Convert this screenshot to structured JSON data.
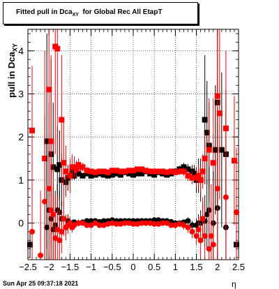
{
  "title": {
    "prefix": "Fitted pull in Dca",
    "sub": "XY",
    "suffix": "  for Global Rec All EtapT"
  },
  "ylabel": {
    "main": "pull in Dca",
    "sub": "XY"
  },
  "xlabel": "η",
  "timestamp": "Sun Apr 25 09:37:18 2021",
  "chart_data": {
    "type": "scatter",
    "title": "Fitted pull in Dca_XY for Global Rec All EtapT",
    "xlabel": "η",
    "ylabel": "pull in Dca_XY",
    "xlim": [
      -2.5,
      2.5
    ],
    "ylim": [
      -0.85,
      4.5
    ],
    "xticks": [
      -2.5,
      -2,
      -1.5,
      -1,
      -0.5,
      0,
      0.5,
      1,
      1.5,
      2,
      2.5
    ],
    "xtick_labels": [
      "−2.5",
      "−2",
      "−1.5",
      "−1",
      "−0.5",
      "0",
      "0.5",
      "1",
      "1.5",
      "2",
      "2.5"
    ],
    "yticks": [
      0,
      1,
      2,
      3,
      4
    ],
    "grid": true,
    "series": [
      {
        "role": "sigma",
        "color": "#000000",
        "marker": "square",
        "x": [
          -2.45,
          -2.05,
          -1.95,
          -1.9,
          -1.8,
          -1.75,
          -1.7,
          -1.6,
          -1.55,
          -1.5,
          -1.45,
          -1.4,
          -1.3,
          -1.2,
          -1.1,
          -1.0,
          -0.9,
          -0.8,
          -0.7,
          -0.6,
          -0.5,
          -0.4,
          -0.3,
          -0.2,
          -0.1,
          0.0,
          0.1,
          0.2,
          0.3,
          0.4,
          0.5,
          0.6,
          0.7,
          0.8,
          0.9,
          1.0,
          1.1,
          1.2,
          1.3,
          1.4,
          1.45,
          1.5,
          1.55,
          1.6,
          1.7,
          1.75,
          1.8,
          1.95,
          2.0,
          2.1,
          2.2,
          2.45
        ],
        "y": [
          -0.5,
          1.9,
          1.6,
          1.3,
          1.25,
          1.35,
          1.0,
          0.95,
          1.05,
          1.1,
          1.2,
          1.1,
          1.15,
          1.1,
          1.15,
          1.1,
          1.12,
          1.15,
          1.12,
          1.1,
          1.12,
          1.15,
          1.12,
          1.18,
          1.15,
          1.12,
          1.15,
          1.15,
          1.2,
          1.15,
          1.12,
          1.18,
          1.15,
          1.12,
          1.15,
          1.2,
          1.25,
          1.3,
          1.25,
          1.2,
          1.15,
          1.0,
          1.1,
          1.0,
          2.4,
          2.1,
          1.8,
          1.7,
          2.8,
          1.7,
          1.6,
          -0.5
        ],
        "err": [
          0.3,
          2.5,
          2.2,
          1.5,
          1.0,
          0.8,
          0.6,
          0.3,
          0.3,
          0.2,
          0.15,
          0.1,
          0.08,
          0.06,
          0.05,
          0.05,
          0.05,
          0.05,
          0.05,
          0.05,
          0.05,
          0.05,
          0.05,
          0.05,
          0.05,
          0.05,
          0.05,
          0.05,
          0.05,
          0.05,
          0.05,
          0.05,
          0.05,
          0.05,
          0.05,
          0.06,
          0.08,
          0.1,
          0.12,
          0.15,
          0.2,
          0.3,
          0.4,
          0.5,
          1.5,
          1.2,
          1.0,
          1.5,
          2.5,
          1.8,
          1.5,
          0.3
        ]
      },
      {
        "role": "sigma",
        "color": "#ff0000",
        "marker": "square",
        "x": [
          -2.4,
          -2.1,
          -2.0,
          -1.95,
          -1.85,
          -1.8,
          -1.7,
          -1.65,
          -1.6,
          -1.5,
          -1.45,
          -1.4,
          -1.35,
          -1.3,
          -1.25,
          -1.2,
          -1.1,
          -1.0,
          -0.9,
          -0.8,
          -0.7,
          -0.6,
          -0.5,
          -0.4,
          -0.3,
          -0.2,
          -0.1,
          0.0,
          0.1,
          0.2,
          0.3,
          0.4,
          0.5,
          0.6,
          0.7,
          0.8,
          0.9,
          1.0,
          1.1,
          1.2,
          1.3,
          1.4,
          1.5,
          1.55,
          1.6,
          1.65,
          1.7,
          1.8,
          1.9,
          2.0,
          2.05,
          2.2,
          2.4
        ],
        "y": [
          2.15,
          1.5,
          3.1,
          1.9,
          4.1,
          4.05,
          2.4,
          1.4,
          1.2,
          1.1,
          1.3,
          1.3,
          1.25,
          1.35,
          1.3,
          1.3,
          1.22,
          1.2,
          1.18,
          1.2,
          1.2,
          1.18,
          1.22,
          1.22,
          1.2,
          1.2,
          1.22,
          1.22,
          1.25,
          1.25,
          1.22,
          1.2,
          1.2,
          1.2,
          1.2,
          1.18,
          1.2,
          1.18,
          1.2,
          1.2,
          1.1,
          1.05,
          1.05,
          1.1,
          1.0,
          1.2,
          1.5,
          1.7,
          1.4,
          2.95,
          2.55,
          2.2,
          1.45
        ],
        "err": [
          1.5,
          2.5,
          2.5,
          2.0,
          2.5,
          2.5,
          1.5,
          1.0,
          0.6,
          0.4,
          0.3,
          0.25,
          0.2,
          0.15,
          0.12,
          0.1,
          0.08,
          0.06,
          0.06,
          0.06,
          0.06,
          0.06,
          0.06,
          0.06,
          0.06,
          0.06,
          0.06,
          0.06,
          0.06,
          0.06,
          0.06,
          0.06,
          0.06,
          0.06,
          0.06,
          0.06,
          0.06,
          0.07,
          0.08,
          0.1,
          0.12,
          0.15,
          0.2,
          0.25,
          0.3,
          0.4,
          0.6,
          1.2,
          1.5,
          2.5,
          2.0,
          1.8,
          1.5
        ]
      },
      {
        "role": "mean",
        "color": "#000000",
        "marker": "circle",
        "x": [
          -2.45,
          -2.05,
          -2.0,
          -1.95,
          -1.9,
          -1.85,
          -1.8,
          -1.75,
          -1.7,
          -1.6,
          -1.55,
          -1.5,
          -1.45,
          -1.4,
          -1.3,
          -1.2,
          -1.1,
          -1.0,
          -0.9,
          -0.8,
          -0.7,
          -0.6,
          -0.5,
          -0.4,
          -0.3,
          -0.2,
          -0.1,
          0.0,
          0.1,
          0.2,
          0.3,
          0.4,
          0.5,
          0.6,
          0.7,
          0.8,
          0.9,
          1.0,
          1.1,
          1.2,
          1.3,
          1.4,
          1.5,
          1.55,
          1.6,
          1.65,
          1.7,
          1.75,
          1.8,
          1.9,
          2.0,
          2.2,
          2.45
        ],
        "y": [
          -0.5,
          -0.1,
          0.3,
          0.1,
          -0.15,
          -0.05,
          0.3,
          0.25,
          0.1,
          -0.1,
          0.05,
          -0.05,
          0.0,
          0.02,
          0.0,
          0.02,
          0.05,
          0.05,
          0.05,
          0.03,
          0.05,
          0.05,
          0.07,
          0.05,
          0.05,
          0.05,
          0.05,
          0.05,
          0.05,
          0.05,
          0.05,
          0.05,
          0.07,
          0.07,
          0.05,
          0.05,
          0.03,
          0.0,
          0.0,
          0.02,
          0.05,
          -0.05,
          -0.05,
          0.0,
          0.0,
          0.1,
          0.05,
          0.2,
          0.3,
          0.0,
          0.35,
          -0.1,
          0.25
        ],
        "err": [
          0.3,
          2.0,
          1.5,
          1.2,
          1.0,
          0.8,
          0.6,
          0.5,
          0.4,
          0.2,
          0.15,
          0.1,
          0.08,
          0.06,
          0.05,
          0.04,
          0.04,
          0.04,
          0.04,
          0.04,
          0.04,
          0.04,
          0.04,
          0.04,
          0.04,
          0.04,
          0.04,
          0.04,
          0.04,
          0.04,
          0.04,
          0.04,
          0.04,
          0.04,
          0.04,
          0.04,
          0.04,
          0.04,
          0.05,
          0.06,
          0.08,
          0.1,
          0.15,
          0.2,
          0.3,
          0.4,
          0.6,
          0.8,
          1.0,
          1.2,
          2.0,
          1.5,
          0.4
        ]
      },
      {
        "role": "mean",
        "color": "#ff0000",
        "marker": "circle",
        "x": [
          -2.4,
          -2.2,
          -2.1,
          -2.0,
          -1.95,
          -1.9,
          -1.85,
          -1.8,
          -1.75,
          -1.7,
          -1.65,
          -1.6,
          -1.55,
          -1.5,
          -1.45,
          -1.4,
          -1.3,
          -1.2,
          -1.1,
          -1.0,
          -0.9,
          -0.8,
          -0.7,
          -0.6,
          -0.5,
          -0.4,
          -0.3,
          -0.2,
          -0.1,
          0.0,
          0.1,
          0.2,
          0.3,
          0.4,
          0.5,
          0.6,
          0.7,
          0.8,
          0.9,
          1.0,
          1.1,
          1.2,
          1.3,
          1.4,
          1.5,
          1.55,
          1.6,
          1.65,
          1.7,
          1.8,
          1.85,
          1.9,
          2.0,
          2.2,
          2.45
        ],
        "y": [
          -0.2,
          -0.75,
          0.5,
          0.8,
          0.3,
          0.2,
          -0.35,
          -0.15,
          -0.4,
          -0.2,
          0.1,
          -0.1,
          -0.05,
          0.0,
          -0.1,
          -0.05,
          0.0,
          0.0,
          -0.05,
          -0.05,
          0.0,
          -0.05,
          -0.05,
          -0.02,
          0.0,
          -0.02,
          -0.02,
          0.0,
          0.0,
          -0.02,
          -0.02,
          0.0,
          0.0,
          0.0,
          -0.02,
          -0.02,
          0.0,
          0.0,
          -0.05,
          -0.05,
          -0.02,
          -0.05,
          -0.1,
          -0.2,
          -0.3,
          -0.15,
          -0.4,
          0.1,
          -0.3,
          -0.6,
          -0.3,
          -0.5,
          0.8,
          0.6,
          0.25
        ],
        "err": [
          1.0,
          1.5,
          2.0,
          2.0,
          1.5,
          1.2,
          1.0,
          0.8,
          0.7,
          0.5,
          0.4,
          0.3,
          0.2,
          0.15,
          0.12,
          0.1,
          0.08,
          0.06,
          0.05,
          0.05,
          0.05,
          0.05,
          0.05,
          0.05,
          0.05,
          0.05,
          0.05,
          0.05,
          0.05,
          0.05,
          0.05,
          0.05,
          0.05,
          0.05,
          0.05,
          0.05,
          0.05,
          0.05,
          0.06,
          0.07,
          0.08,
          0.1,
          0.12,
          0.15,
          0.2,
          0.3,
          0.4,
          0.5,
          0.7,
          1.0,
          1.2,
          1.5,
          2.5,
          2.0,
          1.5
        ]
      }
    ]
  }
}
